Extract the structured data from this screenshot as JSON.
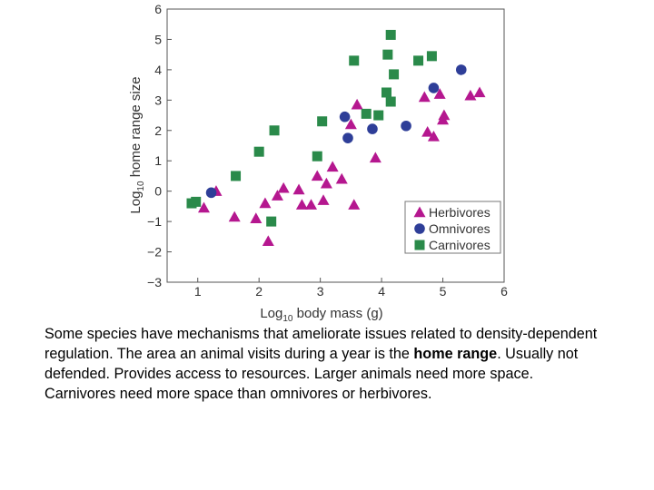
{
  "chart_data": {
    "type": "scatter",
    "title": "",
    "xlabel": {
      "prefix": "Log",
      "sub": "10",
      "suffix": " body mass (g)"
    },
    "ylabel": {
      "prefix": "Log",
      "sub": "10",
      "suffix": " home range size"
    },
    "xlim": [
      0.5,
      6
    ],
    "ylim": [
      -3,
      6
    ],
    "x_ticks": [
      1,
      2,
      3,
      4,
      5,
      6
    ],
    "y_ticks": [
      -3,
      -2,
      -1,
      0,
      1,
      2,
      3,
      4,
      5,
      6
    ],
    "x_tick_labels": [
      "1",
      "2",
      "3",
      "4",
      "5",
      "6"
    ],
    "y_tick_labels": [
      "−3",
      "−2",
      "−1",
      "0",
      "1",
      "2",
      "3",
      "4",
      "5",
      "6"
    ],
    "grid": false,
    "legend_position": "bottom-right",
    "series": [
      {
        "name": "Herbivores",
        "marker": "triangle",
        "color": "#b5178f",
        "points": [
          [
            1.1,
            -0.55
          ],
          [
            1.3,
            0.0
          ],
          [
            1.6,
            -0.85
          ],
          [
            1.95,
            -0.9
          ],
          [
            2.1,
            -0.4
          ],
          [
            2.15,
            -1.65
          ],
          [
            2.3,
            -0.15
          ],
          [
            2.4,
            0.1
          ],
          [
            2.65,
            0.05
          ],
          [
            2.7,
            -0.45
          ],
          [
            2.85,
            -0.45
          ],
          [
            2.95,
            0.5
          ],
          [
            3.05,
            -0.3
          ],
          [
            3.1,
            0.25
          ],
          [
            3.2,
            0.8
          ],
          [
            3.35,
            0.4
          ],
          [
            3.5,
            2.2
          ],
          [
            3.55,
            -0.45
          ],
          [
            3.6,
            2.85
          ],
          [
            3.9,
            1.1
          ],
          [
            4.7,
            3.1
          ],
          [
            4.75,
            1.95
          ],
          [
            4.85,
            1.8
          ],
          [
            4.95,
            3.2
          ],
          [
            5.0,
            2.35
          ],
          [
            5.02,
            2.5
          ],
          [
            5.45,
            3.15
          ],
          [
            5.6,
            3.25
          ]
        ]
      },
      {
        "name": "Omnivores",
        "marker": "circle",
        "color": "#2e3e98",
        "points": [
          [
            1.22,
            -0.05
          ],
          [
            3.4,
            2.45
          ],
          [
            3.45,
            1.75
          ],
          [
            3.85,
            2.05
          ],
          [
            4.4,
            2.15
          ],
          [
            4.85,
            3.4
          ],
          [
            5.3,
            4.0
          ]
        ]
      },
      {
        "name": "Carnivores",
        "marker": "square",
        "color": "#2a8a4a",
        "points": [
          [
            0.9,
            -0.4
          ],
          [
            0.97,
            -0.35
          ],
          [
            1.62,
            0.5
          ],
          [
            2.0,
            1.3
          ],
          [
            2.2,
            -1.0
          ],
          [
            2.25,
            2.0
          ],
          [
            2.95,
            1.15
          ],
          [
            3.03,
            2.3
          ],
          [
            3.55,
            4.3
          ],
          [
            3.75,
            2.55
          ],
          [
            3.95,
            2.5
          ],
          [
            4.08,
            3.25
          ],
          [
            4.1,
            4.5
          ],
          [
            4.15,
            2.95
          ],
          [
            4.15,
            5.15
          ],
          [
            4.2,
            3.85
          ],
          [
            4.6,
            4.3
          ],
          [
            4.82,
            4.45
          ]
        ]
      }
    ]
  },
  "caption": {
    "before": "Some species have mechanisms that ameliorate issues related to density-dependent regulation.  The area an animal visits during a year is the ",
    "bold": "home range",
    "after": ".  Usually not defended.  Provides access to resources.  Larger animals need more space.  Carnivores need more space than omnivores or herbivores."
  }
}
